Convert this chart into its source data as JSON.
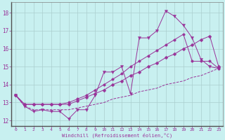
{
  "xlabel": "Windchill (Refroidissement éolien,°C)",
  "background_color": "#c8f0f0",
  "grid_color": "#aacece",
  "line_color": "#993399",
  "spine_color": "#808080",
  "xlim": [
    -0.5,
    23.5
  ],
  "ylim": [
    11.7,
    18.6
  ],
  "xticks": [
    0,
    1,
    2,
    3,
    4,
    5,
    6,
    7,
    8,
    9,
    10,
    11,
    12,
    13,
    14,
    15,
    16,
    17,
    18,
    19,
    20,
    21,
    22,
    23
  ],
  "yticks": [
    12,
    13,
    14,
    15,
    16,
    17,
    18
  ],
  "series": [
    [
      13.4,
      12.8,
      12.5,
      12.6,
      12.5,
      12.5,
      12.1,
      12.6,
      12.6,
      13.4,
      14.7,
      14.7,
      15.0,
      13.5,
      16.6,
      16.6,
      17.0,
      18.1,
      17.8,
      17.3,
      16.6,
      15.4,
      15.0,
      14.9
    ],
    [
      13.4,
      12.9,
      12.9,
      12.9,
      12.9,
      12.9,
      12.9,
      13.1,
      13.3,
      13.5,
      13.7,
      14.0,
      14.2,
      14.5,
      14.7,
      15.0,
      15.2,
      15.5,
      15.7,
      16.0,
      16.2,
      16.5,
      16.7,
      15.0
    ],
    [
      13.4,
      12.9,
      12.9,
      12.9,
      12.9,
      12.9,
      13.0,
      13.2,
      13.4,
      13.7,
      14.0,
      14.3,
      14.6,
      15.0,
      15.3,
      15.6,
      15.9,
      16.2,
      16.5,
      16.8,
      15.3,
      15.3,
      15.3,
      14.9
    ],
    [
      13.4,
      12.8,
      12.6,
      12.6,
      12.6,
      12.6,
      12.6,
      12.7,
      12.8,
      12.9,
      13.0,
      13.2,
      13.3,
      13.4,
      13.6,
      13.7,
      13.8,
      14.0,
      14.1,
      14.2,
      14.4,
      14.5,
      14.7,
      14.9
    ]
  ],
  "markers": [
    "v",
    "D",
    "o",
    null
  ],
  "marker_sizes": [
    3,
    2.5,
    2.5,
    0
  ]
}
